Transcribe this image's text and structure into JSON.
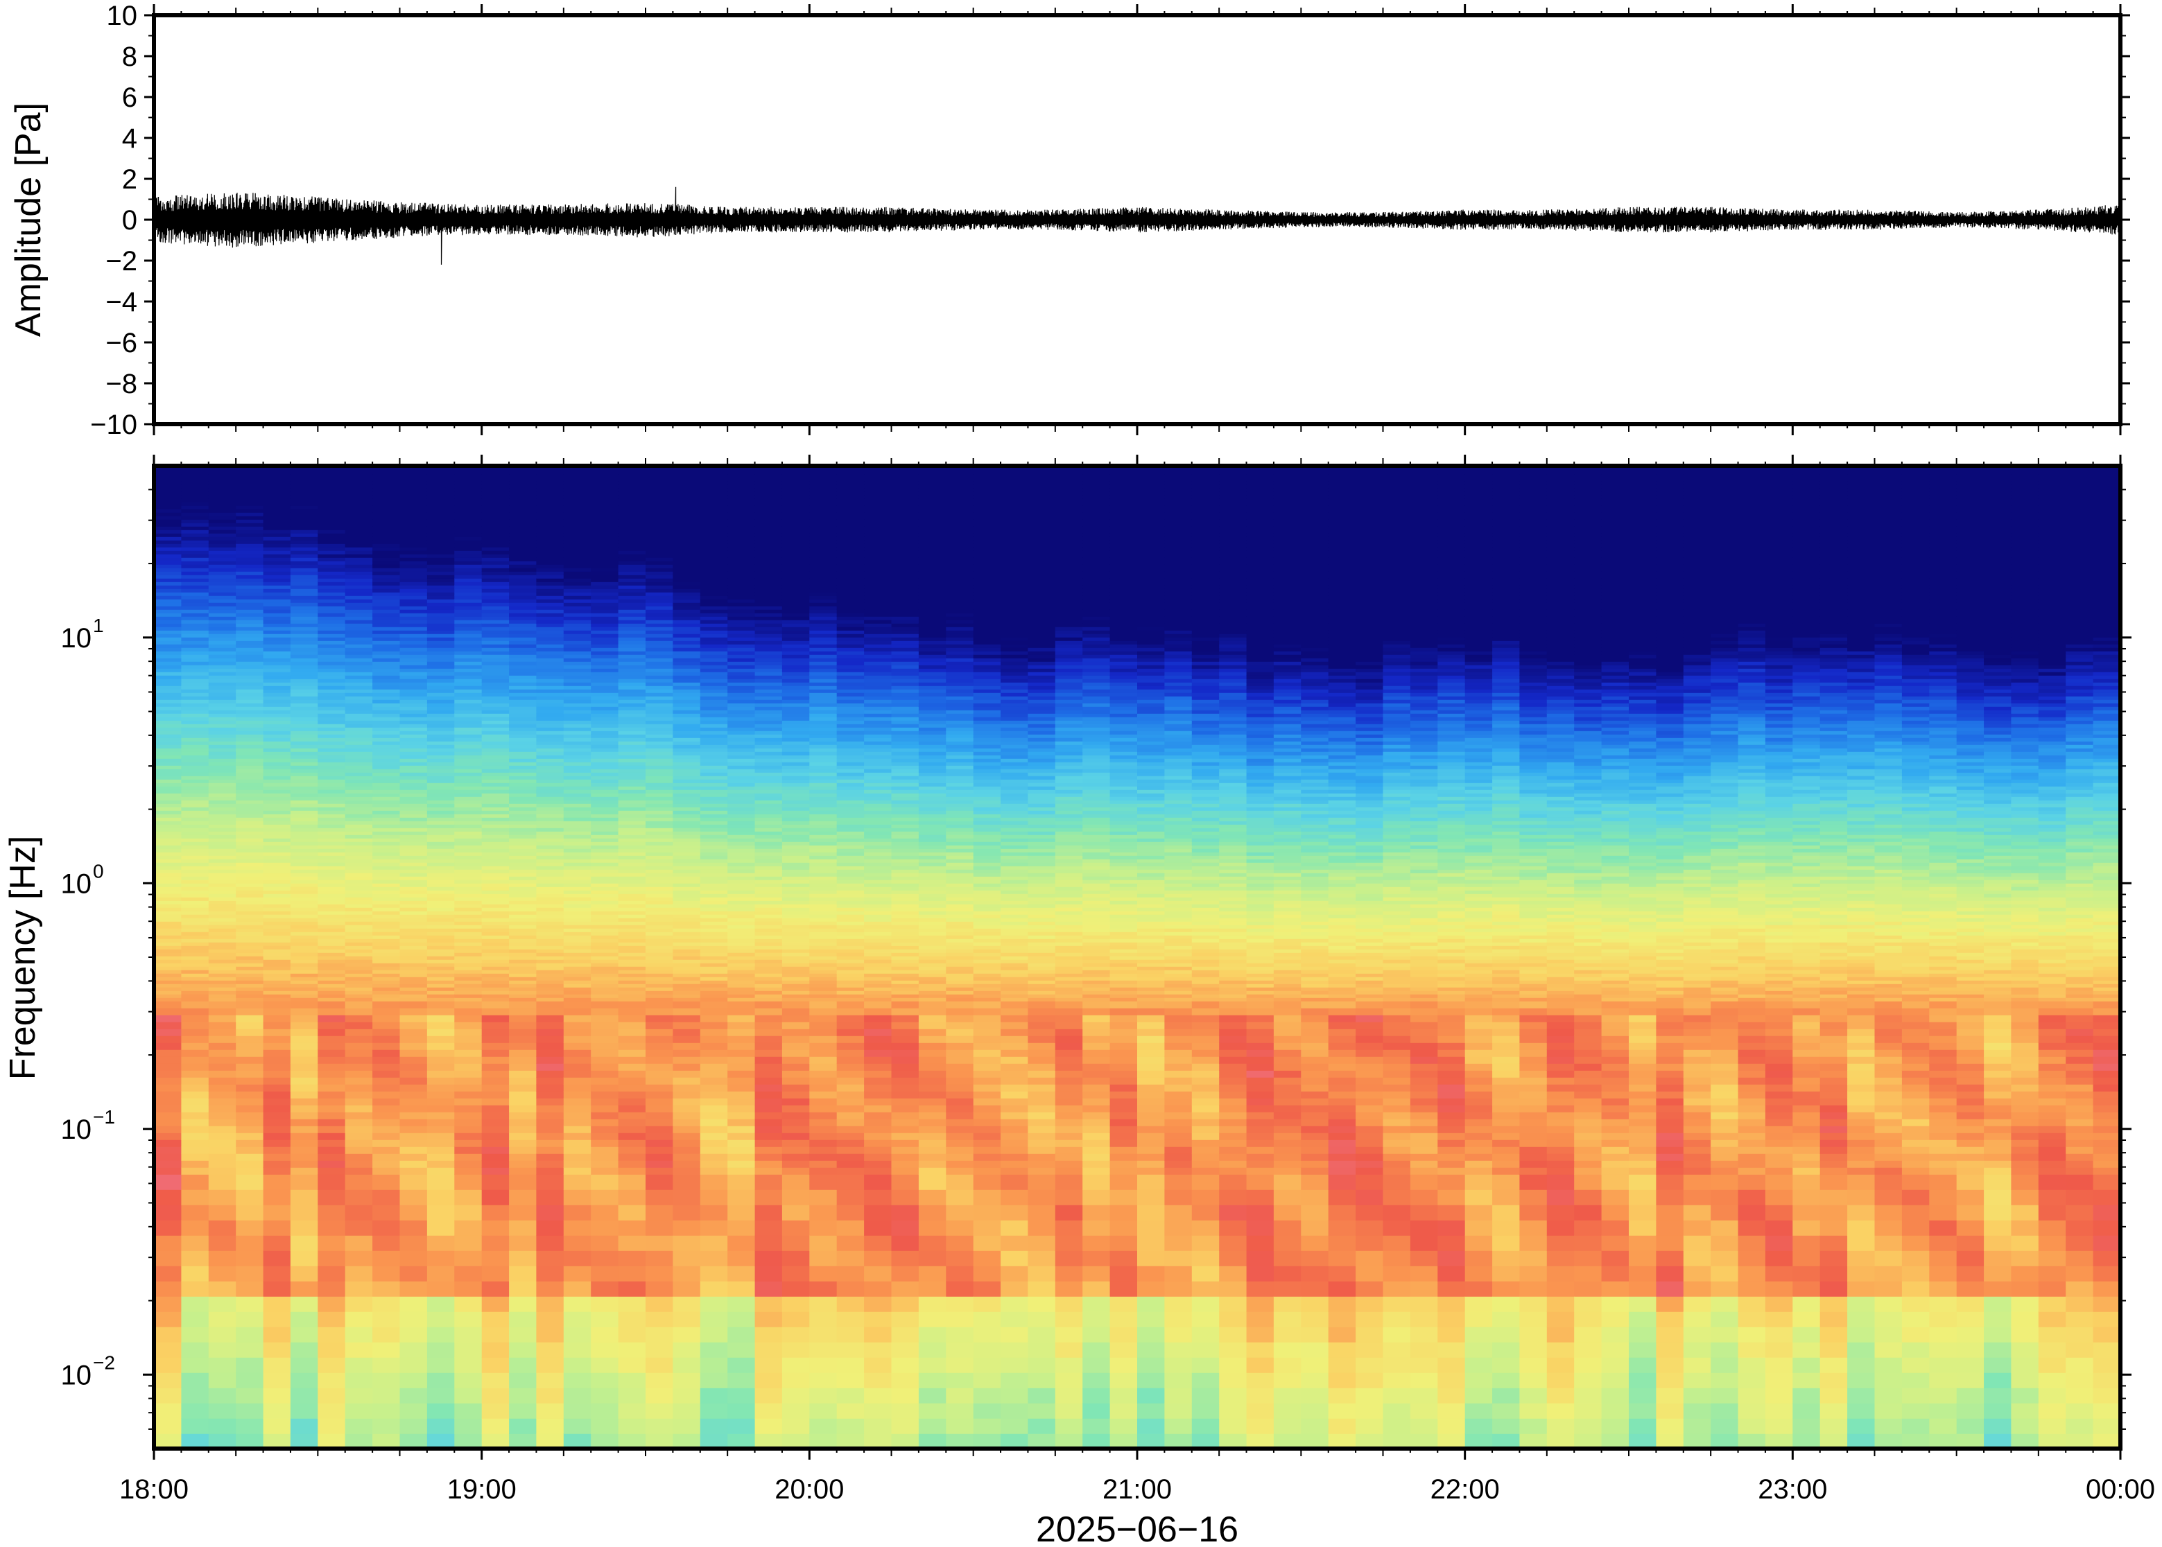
{
  "chart_data": [
    {
      "type": "line",
      "title": "",
      "ylabel": "Amplitude [Pa]",
      "ylim": [
        -10,
        10
      ],
      "yticks": [
        10,
        8,
        6,
        4,
        2,
        0,
        -2,
        -4,
        -6,
        -8,
        -10
      ],
      "ytick_labels": [
        "10",
        "8",
        "6",
        "4",
        "2",
        "0",
        "−2",
        "−4",
        "−6",
        "−8",
        "−10"
      ],
      "xlim_hours": [
        18,
        24
      ],
      "grid": false,
      "series": [
        {
          "color": "#000000",
          "envelope_x_hours": [
            18.0,
            18.25,
            18.5,
            18.75,
            19.0,
            19.25,
            19.5,
            19.75,
            20.0,
            20.25,
            20.5,
            20.75,
            21.0,
            21.25,
            21.5,
            21.75,
            22.0,
            22.25,
            22.5,
            22.75,
            23.0,
            23.25,
            23.5,
            23.75,
            24.0
          ],
          "envelope_amplitude": [
            0.9,
            1.1,
            0.9,
            0.7,
            0.6,
            0.6,
            0.7,
            0.5,
            0.5,
            0.5,
            0.4,
            0.4,
            0.5,
            0.4,
            0.3,
            0.3,
            0.4,
            0.4,
            0.5,
            0.5,
            0.4,
            0.4,
            0.3,
            0.4,
            0.6
          ],
          "peak_max": 1.6,
          "peak_min": -2.2
        }
      ]
    },
    {
      "type": "heatmap",
      "title": "",
      "xlabel": "2025−06−16",
      "ylabel": "Frequency [Hz]",
      "yscale": "log",
      "ylim": [
        0.005,
        50
      ],
      "yticks": [
        0.01,
        0.1,
        1,
        10
      ],
      "ytick_labels": [
        {
          "base": "10",
          "exp": "−2"
        },
        {
          "base": "10",
          "exp": "−1"
        },
        {
          "base": "10",
          "exp": "0"
        },
        {
          "base": "10",
          "exp": "1"
        }
      ],
      "xlim_hours": [
        18,
        24
      ],
      "xticks_hours": [
        18,
        19,
        20,
        21,
        22,
        23,
        24
      ],
      "xtick_labels": [
        "18:00",
        "19:00",
        "20:00",
        "21:00",
        "22:00",
        "23:00",
        "00:00"
      ],
      "colormap": [
        "#0a0a78",
        "#1428c8",
        "#1e6ee6",
        "#32aaf0",
        "#5ad2e6",
        "#82e6b4",
        "#c8f08c",
        "#f0f078",
        "#fad264",
        "#fa9650",
        "#ef5a4a",
        "#f07890"
      ],
      "grid": false,
      "feature_frequencies_hz": [
        0.03,
        0.06,
        0.1,
        0.15,
        0.2,
        0.3
      ],
      "column_x_hours": [
        18.0,
        18.25,
        18.5,
        18.75,
        19.0,
        19.25,
        19.5,
        19.75,
        20.0,
        20.25,
        20.5,
        20.75,
        21.0,
        21.25,
        21.5,
        21.75,
        22.0,
        22.25,
        22.5,
        22.75,
        23.0,
        23.25,
        23.5,
        23.75,
        24.0
      ],
      "upper_level": [
        0.62,
        0.63,
        0.6,
        0.58,
        0.55,
        0.52,
        0.55,
        0.45,
        0.42,
        0.38,
        0.32,
        0.3,
        0.34,
        0.28,
        0.22,
        0.24,
        0.3,
        0.27,
        0.22,
        0.26,
        0.32,
        0.3,
        0.25,
        0.22,
        0.3
      ]
    }
  ]
}
